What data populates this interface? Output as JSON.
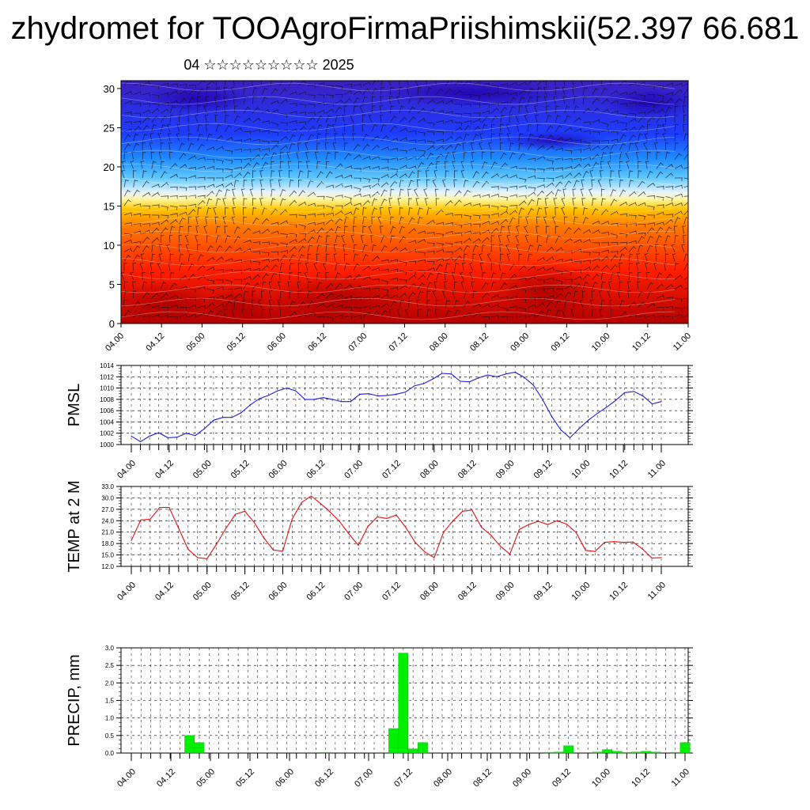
{
  "title": "zhydromet for TOOAgroFirmaPriishimskii(52.397 66.681",
  "subtitle": "04 ☆☆☆☆☆☆☆☆☆ 2025",
  "colors": {
    "pmsl_line": "#1f1fd6",
    "temp_line": "#e01010",
    "precip_bar": "#00ee00",
    "grid": "#000000"
  },
  "chart_data": [
    {
      "type": "heatmap",
      "title": "",
      "ylabel": "",
      "ylim": [
        0,
        31
      ],
      "yticks": [
        0,
        5,
        10,
        15,
        20,
        25,
        30
      ],
      "x_tick_labels": [
        "04.00",
        "04.12",
        "05.00",
        "05.12",
        "06.00",
        "06.12",
        "07.00",
        "07.12",
        "08.00",
        "08.12",
        "09.00",
        "09.12",
        "10.00",
        "10.12",
        "11.00"
      ],
      "colormap": [
        "#c80000",
        "#ff2a00",
        "#ff8a00",
        "#ffe96e",
        "#eaf6ff",
        "#35b8ff",
        "#1f4cff",
        "#2a1fc8"
      ],
      "wind_barbs": true
    },
    {
      "type": "line",
      "ylabel": "PMSL",
      "ylim": [
        1000,
        1014
      ],
      "yticks": [
        "1000",
        "1002",
        "1004",
        "1006",
        "1008",
        "1010",
        "1012",
        "1014"
      ],
      "x_tick_labels": [
        "04.00",
        "04.12",
        "05.00",
        "05.12",
        "06.00",
        "06.12",
        "07.00",
        "07.12",
        "08.00",
        "08.12",
        "09.00",
        "09.12",
        "10.00",
        "10.12",
        "11.00"
      ],
      "values": [
        1001.5,
        1000.5,
        1001.5,
        1002.1,
        1001.2,
        1001.3,
        1002.0,
        1001.6,
        1002.8,
        1004.3,
        1004.8,
        1004.8,
        1005.6,
        1007.0,
        1008.1,
        1008.7,
        1009.5,
        1010.0,
        1009.5,
        1008.0,
        1008.0,
        1008.3,
        1008.0,
        1007.6,
        1007.6,
        1008.9,
        1009.0,
        1008.6,
        1008.7,
        1008.9,
        1009.3,
        1010.4,
        1010.8,
        1011.6,
        1012.6,
        1012.5,
        1011.2,
        1011.1,
        1011.8,
        1012.3,
        1012.0,
        1012.5,
        1012.8,
        1011.9,
        1010.5,
        1008.0,
        1005.0,
        1002.6,
        1001.2,
        1002.8,
        1004.3,
        1005.5,
        1006.6,
        1007.8,
        1009.2,
        1009.4,
        1008.6,
        1007.2,
        1007.6
      ]
    },
    {
      "type": "line",
      "ylabel": "TEMP at 2 M",
      "ylim": [
        12,
        33
      ],
      "yticks": [
        "12.0",
        "15.0",
        "18.0",
        "21.0",
        "24.0",
        "27.0",
        "30.0",
        "33.0"
      ],
      "x_tick_labels": [
        "04.00",
        "04.12",
        "05.00",
        "05.12",
        "06.00",
        "06.12",
        "07.00",
        "07.12",
        "08.00",
        "08.12",
        "09.00",
        "09.12",
        "10.00",
        "10.12",
        "11.00"
      ],
      "values": [
        18.8,
        24.2,
        24.4,
        27.5,
        27.5,
        22.0,
        16.5,
        14.3,
        14.0,
        17.8,
        22.0,
        25.7,
        26.5,
        23.5,
        19.5,
        16.3,
        16.0,
        24.5,
        28.8,
        30.5,
        28.5,
        26.3,
        23.8,
        20.5,
        17.5,
        22.5,
        25.0,
        24.6,
        25.5,
        22.2,
        18.3,
        15.8,
        14.3,
        21.0,
        24.0,
        26.5,
        26.8,
        22.3,
        20.2,
        17.3,
        15.2,
        21.7,
        23.0,
        23.9,
        23.0,
        24.0,
        23.1,
        20.9,
        16.2,
        15.9,
        18.3,
        18.5,
        18.3,
        18.4,
        16.6,
        14.2,
        14.3
      ]
    },
    {
      "type": "bar",
      "ylabel": "PRECIP, mm",
      "ylim": [
        0,
        3
      ],
      "yticks": [
        "0.0",
        "0.5",
        "1.0",
        "1.5",
        "2.0",
        "2.5",
        "3.0"
      ],
      "x_tick_labels": [
        "04.00",
        "04.12",
        "05.00",
        "05.12",
        "06.00",
        "06.12",
        "07.00",
        "07.12",
        "08.00",
        "08.12",
        "09.00",
        "09.12",
        "10.00",
        "10.12",
        "11.00"
      ],
      "values": [
        0,
        0,
        0,
        0,
        0,
        0,
        0.5,
        0.3,
        0,
        0,
        0,
        0,
        0,
        0,
        0,
        0,
        0,
        0,
        0,
        0,
        0.02,
        0,
        0,
        0,
        0,
        0,
        0,
        0.7,
        2.85,
        0.12,
        0.3,
        0,
        0,
        0,
        0,
        0,
        0,
        0,
        0,
        0,
        0,
        0,
        0,
        0.02,
        0.03,
        0.21,
        0,
        0,
        0.03,
        0.1,
        0.05,
        0.02,
        0.03,
        0.05,
        0.03,
        0,
        0.02,
        0.3
      ]
    }
  ]
}
